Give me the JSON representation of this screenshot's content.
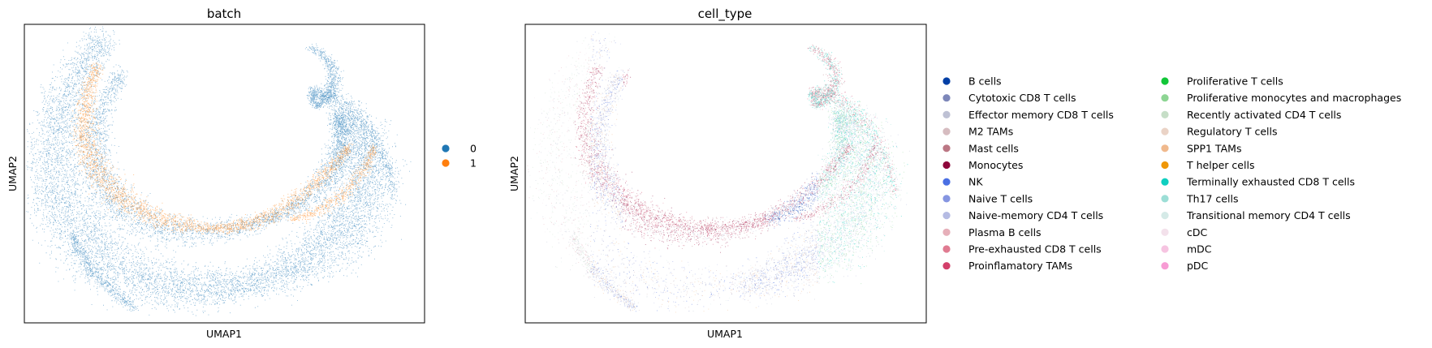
{
  "chart_data": [
    {
      "type": "scatter",
      "title": "batch",
      "xlabel": "UMAP1",
      "ylabel": "UMAP2",
      "legend_placement": "right",
      "series": [
        {
          "name": "0",
          "color": "#1f77b4"
        },
        {
          "name": "1",
          "color": "#ff7f0e"
        }
      ]
    },
    {
      "type": "scatter",
      "title": "cell_type",
      "xlabel": "UMAP1",
      "ylabel": "UMAP2",
      "legend_placement": "right",
      "legend_columns": 2,
      "series": [
        {
          "name": "B cells",
          "color": "#023fa5"
        },
        {
          "name": "Cytotoxic CD8 T cells",
          "color": "#7d87b9"
        },
        {
          "name": "Effector memory CD8 T cells",
          "color": "#bec1d4"
        },
        {
          "name": "M2 TAMs",
          "color": "#d6bcc0"
        },
        {
          "name": "Mast cells",
          "color": "#bb7784"
        },
        {
          "name": "Monocytes",
          "color": "#8e063b"
        },
        {
          "name": "NK",
          "color": "#4a6fe3"
        },
        {
          "name": "Naive T cells",
          "color": "#8595e1"
        },
        {
          "name": "Naive-memory CD4 T cells",
          "color": "#b5bbe3"
        },
        {
          "name": "Plasma B cells",
          "color": "#e6afb9"
        },
        {
          "name": "Pre-exhausted CD8 T cells",
          "color": "#e07b91"
        },
        {
          "name": "Proinflamatory TAMs",
          "color": "#d33f6a"
        },
        {
          "name": "Proliferative T cells",
          "color": "#11c638"
        },
        {
          "name": "Proliferative monocytes and macrophages",
          "color": "#8dd593"
        },
        {
          "name": "Recently activated CD4 T cells",
          "color": "#c6dec7"
        },
        {
          "name": "Regulatory T cells",
          "color": "#ead3c6"
        },
        {
          "name": "SPP1 TAMs",
          "color": "#f0b98d"
        },
        {
          "name": "T helper cells",
          "color": "#ef9708"
        },
        {
          "name": "Terminally exhausted CD8 T cells",
          "color": "#0fcfc0"
        },
        {
          "name": "Th17 cells",
          "color": "#9cded6"
        },
        {
          "name": "Transitional memory CD4 T cells",
          "color": "#d5eae7"
        },
        {
          "name": "cDC",
          "color": "#f3e1eb"
        },
        {
          "name": "mDC",
          "color": "#f6c4e1"
        },
        {
          "name": "pDC",
          "color": "#f79cd4"
        }
      ]
    }
  ]
}
